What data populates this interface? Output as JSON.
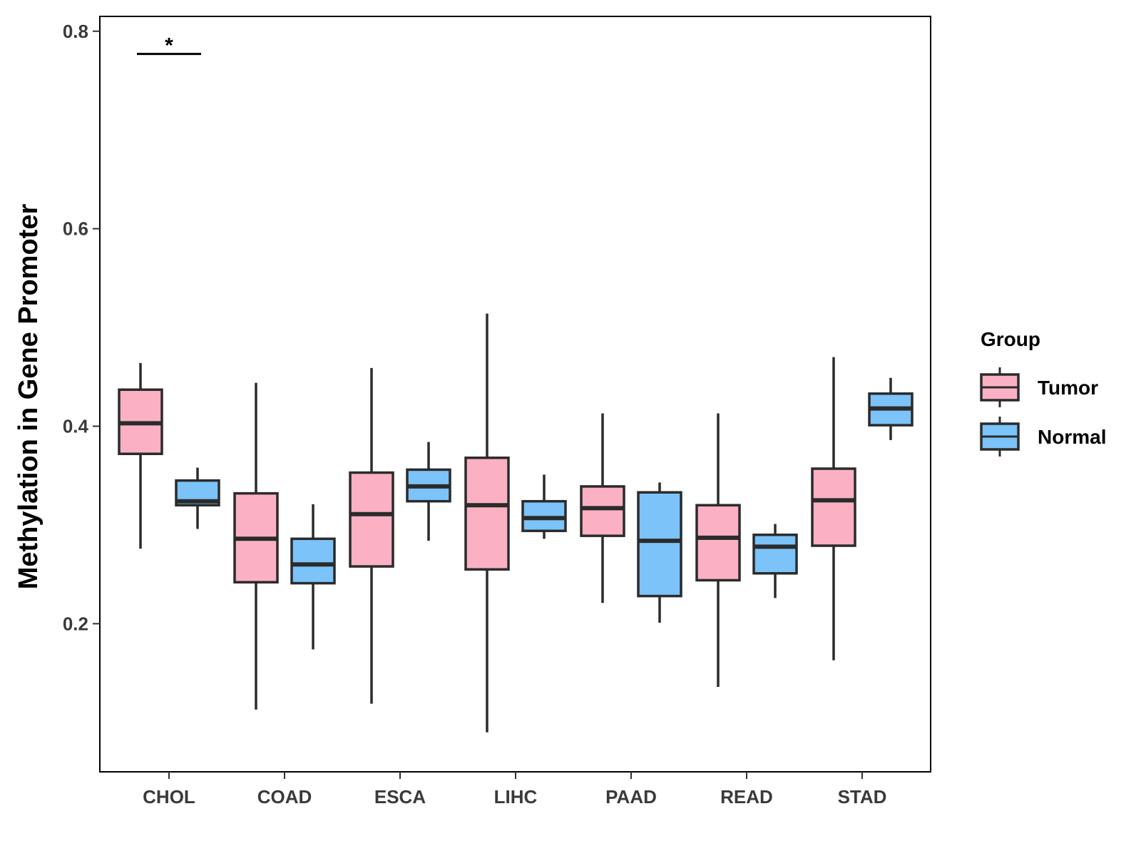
{
  "chart_data": {
    "type": "boxplot",
    "title": "",
    "xlabel": "",
    "ylabel": "Methylation in Gene Promoter",
    "ylim": [
      0.05,
      0.815
    ],
    "yticks": [
      0.2,
      0.4,
      0.6,
      0.8
    ],
    "ytick_labels": [
      "0.2",
      "0.4",
      "0.6",
      "0.8"
    ],
    "grid": false,
    "categories": [
      "CHOL",
      "COAD",
      "ESCA",
      "LIHC",
      "PAAD",
      "READ",
      "STAD"
    ],
    "series": [
      {
        "name": "Tumor",
        "color": "#FBB1C3",
        "boxes": [
          {
            "min": 0.276,
            "q1": 0.372,
            "median": 0.403,
            "q3": 0.437,
            "max": 0.464
          },
          {
            "min": 0.113,
            "q1": 0.242,
            "median": 0.286,
            "q3": 0.332,
            "max": 0.444
          },
          {
            "min": 0.119,
            "q1": 0.258,
            "median": 0.311,
            "q3": 0.353,
            "max": 0.459
          },
          {
            "min": 0.09,
            "q1": 0.255,
            "median": 0.32,
            "q3": 0.368,
            "max": 0.514
          },
          {
            "min": 0.221,
            "q1": 0.289,
            "median": 0.317,
            "q3": 0.339,
            "max": 0.413
          },
          {
            "min": 0.136,
            "q1": 0.244,
            "median": 0.287,
            "q3": 0.32,
            "max": 0.413
          },
          {
            "min": 0.163,
            "q1": 0.279,
            "median": 0.325,
            "q3": 0.357,
            "max": 0.47
          }
        ]
      },
      {
        "name": "Normal",
        "color": "#7BC3F8",
        "boxes": [
          {
            "min": 0.296,
            "q1": 0.32,
            "median": 0.324,
            "q3": 0.345,
            "max": 0.358
          },
          {
            "min": 0.174,
            "q1": 0.241,
            "median": 0.26,
            "q3": 0.286,
            "max": 0.321
          },
          {
            "min": 0.284,
            "q1": 0.324,
            "median": 0.339,
            "q3": 0.356,
            "max": 0.384
          },
          {
            "min": 0.286,
            "q1": 0.294,
            "median": 0.307,
            "q3": 0.324,
            "max": 0.351
          },
          {
            "min": 0.201,
            "q1": 0.228,
            "median": 0.284,
            "q3": 0.333,
            "max": 0.343
          },
          {
            "min": 0.226,
            "q1": 0.251,
            "median": 0.278,
            "q3": 0.29,
            "max": 0.301
          },
          {
            "min": 0.386,
            "q1": 0.401,
            "median": 0.418,
            "q3": 0.433,
            "max": 0.449
          }
        ]
      }
    ],
    "annotations": [
      {
        "category": "CHOL",
        "text": "*",
        "y": 0.777
      }
    ],
    "legend": {
      "title": "Group",
      "position": "right",
      "entries": [
        "Tumor",
        "Normal"
      ]
    }
  }
}
